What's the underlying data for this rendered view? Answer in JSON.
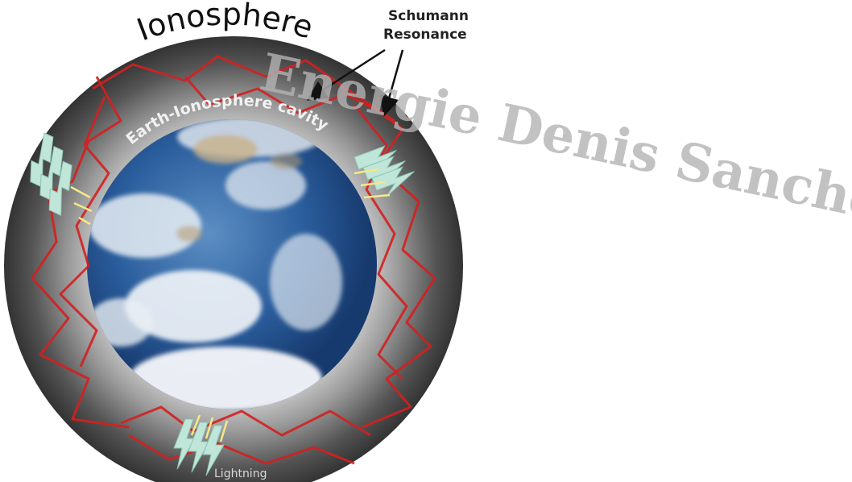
{
  "title": "Ionosphere",
  "callout": {
    "line1": "Schumann",
    "line2": "Resonance"
  },
  "cavity_label": "Earth-Ionosphere cavity",
  "lightning_label": "Lightning",
  "watermark": "Energie Denis Sanchez",
  "icons": {
    "earth": "earth-globe-icon",
    "lightning": "lightning-bolt-icon",
    "arrow": "callout-arrow-icon"
  },
  "colors": {
    "cavity_outer": "#3a3a3a",
    "cavity_inner": "#cfcfcf",
    "wave_paths": "#d42020",
    "lightning_fill": "#bfe6d8",
    "lightning_arrows": "#f5e88a",
    "ocean": "#1f4f8f",
    "watermark": "#b3b3b3"
  }
}
